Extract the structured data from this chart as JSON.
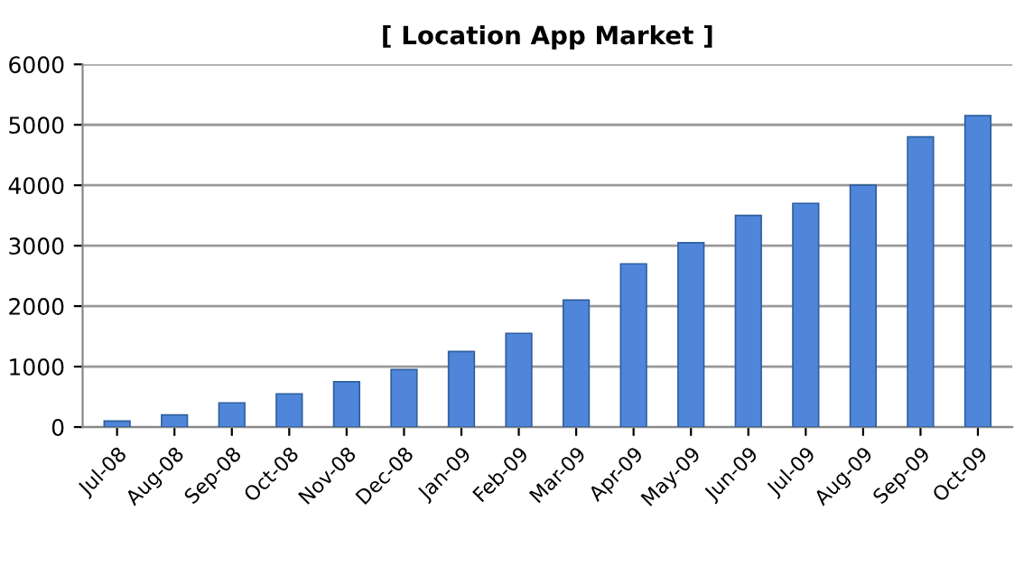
{
  "chart_data": {
    "type": "bar",
    "title": "[ Location App Market ]",
    "categories": [
      "Jul-08",
      "Aug-08",
      "Sep-08",
      "Oct-08",
      "Nov-08",
      "Dec-08",
      "Jan-09",
      "Feb-09",
      "Mar-09",
      "Apr-09",
      "May-09",
      "Jun-09",
      "Jul-09",
      "Aug-09",
      "Sep-09",
      "Oct-09"
    ],
    "values": [
      100,
      200,
      400,
      550,
      750,
      950,
      1250,
      1550,
      2100,
      2700,
      3050,
      3500,
      3700,
      4000,
      4800,
      5150
    ],
    "color": "#4f86d9",
    "ylim": [
      0,
      6000
    ],
    "yticks": [
      0,
      1000,
      2000,
      3000,
      4000,
      5000,
      6000
    ],
    "grid": "y"
  }
}
